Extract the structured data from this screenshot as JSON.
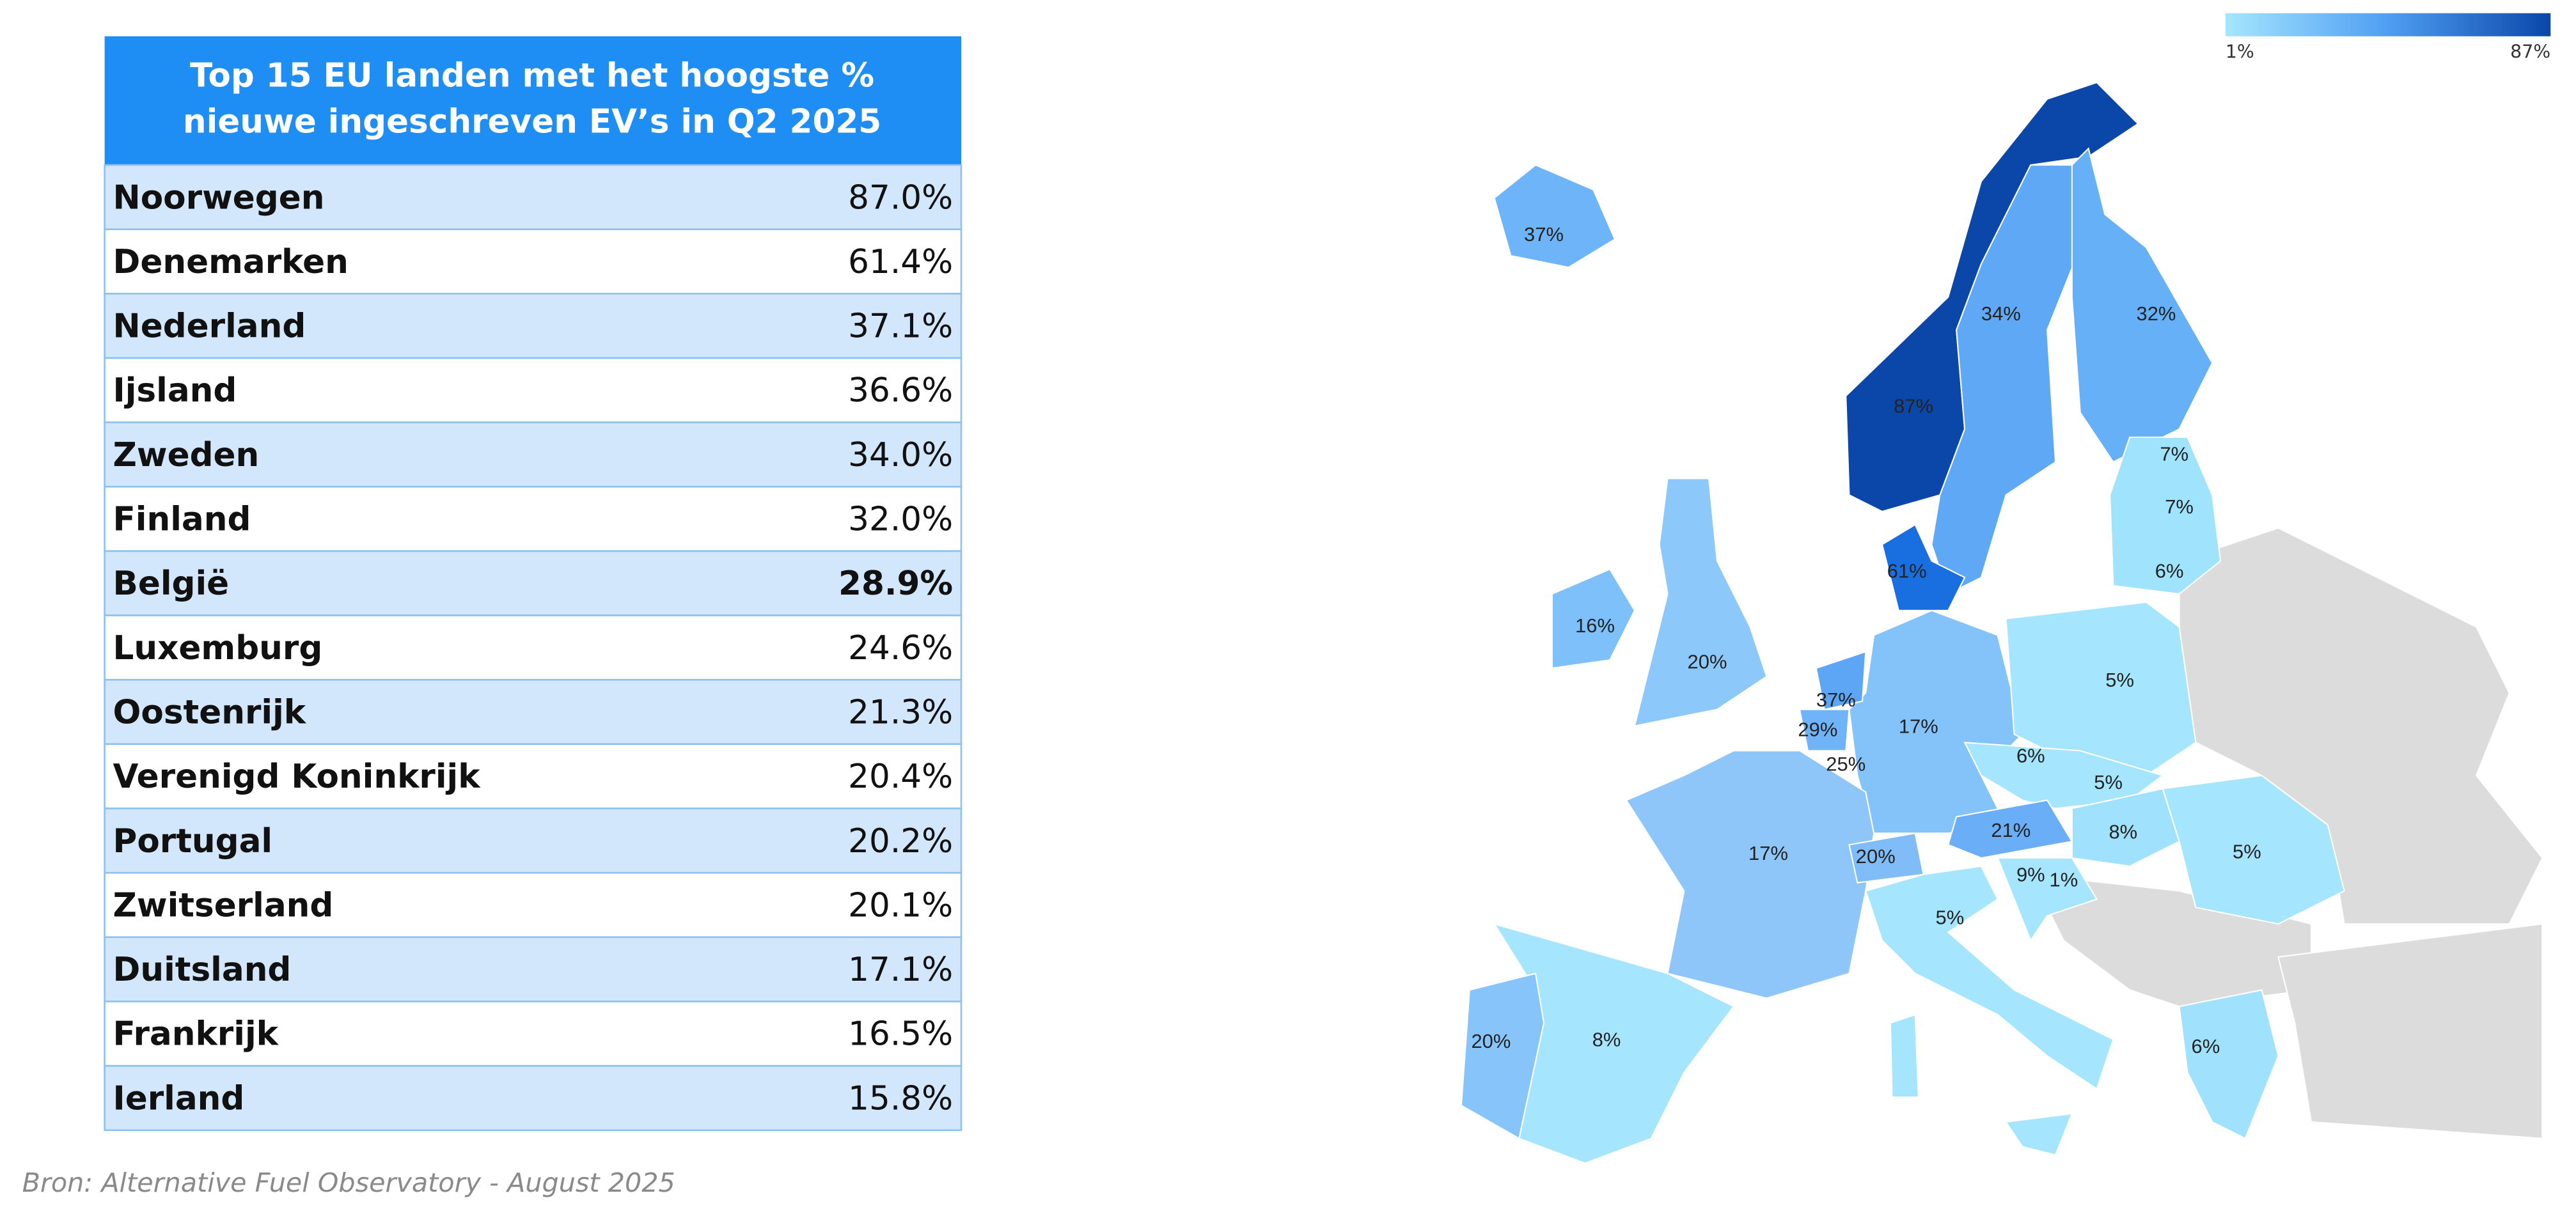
{
  "table": {
    "title": [
      "Top 15 EU landen met het hoogste %",
      "nieuwe ingeschreven EV’s in Q2 2025"
    ],
    "rows": [
      [
        "Noorwegen",
        "87.0%"
      ],
      [
        "Denemarken",
        "61.4%"
      ],
      [
        "Nederland",
        "37.1%"
      ],
      [
        "Ijsland",
        "36.6%"
      ],
      [
        "Zweden",
        "34.0%"
      ],
      [
        "Finland",
        "32.0%"
      ],
      [
        "België",
        "28.9%"
      ],
      [
        "Luxemburg",
        "24.6%"
      ],
      [
        "Oostenrijk",
        "21.3%"
      ],
      [
        "Verenigd Koninkrijk",
        "20.4%"
      ],
      [
        "Portugal",
        "20.2%"
      ],
      [
        "Zwitserland",
        "20.1%"
      ],
      [
        "Duitsland",
        "17.1%"
      ],
      [
        "Frankrijk",
        "16.5%"
      ],
      [
        "Ierland",
        "15.8%"
      ]
    ]
  },
  "source": "Bron: Alternative Fuel Observatory - August 2025",
  "legend": {
    "min": "1%",
    "max": "87%"
  },
  "map": {
    "labels": [
      "37%",
      "87%",
      "34%",
      "32%",
      "61%",
      "7%",
      "7%",
      "6%",
      "16%",
      "20%",
      "37%",
      "29%",
      "25%",
      "17%",
      "5%",
      "6%",
      "5%",
      "21%",
      "8%",
      "5%",
      "17%",
      "20%",
      "9%",
      "1%",
      "5%",
      "20%",
      "8%",
      "6%"
    ]
  }
}
